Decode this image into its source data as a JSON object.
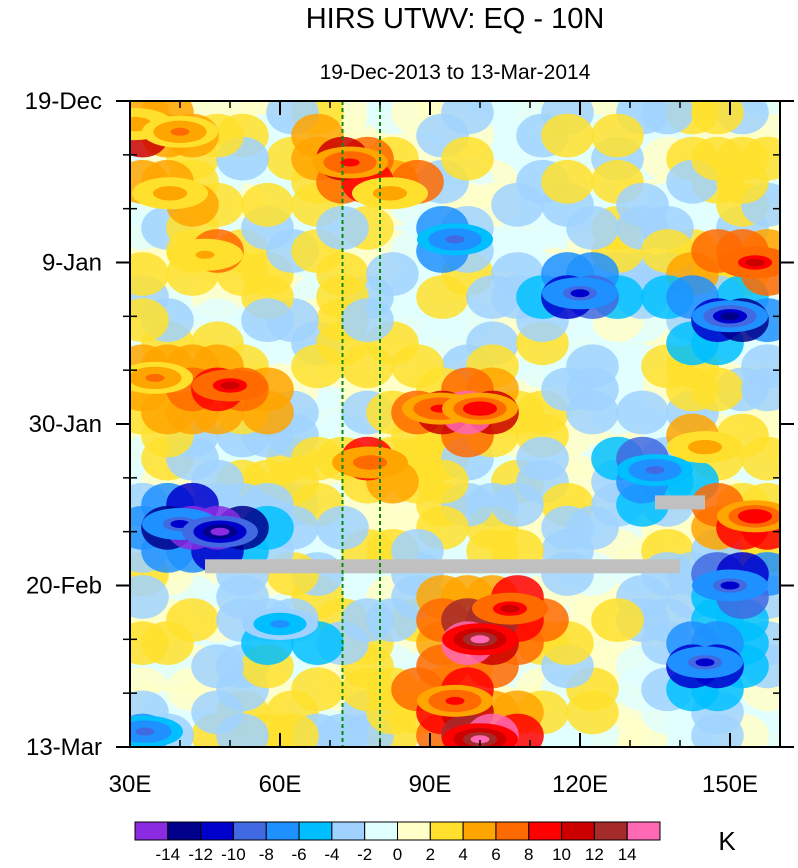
{
  "chart_data": {
    "type": "heatmap",
    "title": "HIRS UTWV: EQ - 10N",
    "subtitle": "19-Dec-2013 to 13-Mar-2014",
    "x_tick_labels": [
      "30E",
      "60E",
      "90E",
      "120E",
      "150E"
    ],
    "x_tick_values": [
      30,
      60,
      90,
      120,
      150
    ],
    "xlim": [
      30,
      160
    ],
    "y_tick_labels": [
      "19-Dec",
      "9-Jan",
      "30-Jan",
      "20-Feb",
      "13-Mar"
    ],
    "y_tick_days": [
      0,
      21,
      42,
      63,
      84
    ],
    "ylim_days": [
      0,
      84
    ],
    "colorbar": {
      "unit_label": "K",
      "levels": [
        "-14",
        "-12",
        "-10",
        "-8",
        "-6",
        "-4",
        "-2",
        "0",
        "2",
        "4",
        "6",
        "8",
        "10",
        "12",
        "14"
      ],
      "colors": [
        "#8a2be2",
        "#00008b",
        "#0000cd",
        "#4169e1",
        "#1e90ff",
        "#00bfff",
        "#a0d2ff",
        "#e0ffff",
        "#ffffc8",
        "#ffe12d",
        "#ffa500",
        "#ff6a00",
        "#ff0000",
        "#cd0000",
        "#a52a2a",
        "#ff69b4"
      ]
    },
    "reference_lines_lon": [
      72.5,
      80
    ],
    "missing_data_bars": [
      {
        "lon_start": 45,
        "lon_end": 140,
        "day": 60.5
      },
      {
        "lon_start": 135,
        "lon_end": 145,
        "day": 52.2
      }
    ],
    "anomaly_features": [
      {
        "lon": 31,
        "day": 3,
        "value": 5
      },
      {
        "lon": 40,
        "day": 4,
        "value": 6
      },
      {
        "lon": 38,
        "day": 12,
        "value": 5
      },
      {
        "lon": 45,
        "day": 20,
        "value": 4
      },
      {
        "lon": 74,
        "day": 8,
        "value": 8
      },
      {
        "lon": 82,
        "day": 12,
        "value": 5
      },
      {
        "lon": 95,
        "day": 18,
        "value": -8
      },
      {
        "lon": 120,
        "day": 25,
        "value": -10
      },
      {
        "lon": 150,
        "day": 28,
        "value": -12
      },
      {
        "lon": 155,
        "day": 21,
        "value": 10
      },
      {
        "lon": 50,
        "day": 37,
        "value": 10
      },
      {
        "lon": 35,
        "day": 36,
        "value": 6
      },
      {
        "lon": 100,
        "day": 40,
        "value": 9
      },
      {
        "lon": 92,
        "day": 40,
        "value": 8
      },
      {
        "lon": 78,
        "day": 47,
        "value": 7
      },
      {
        "lon": 145,
        "day": 45,
        "value": 5
      },
      {
        "lon": 40,
        "day": 55,
        "value": -10
      },
      {
        "lon": 48,
        "day": 56,
        "value": -14
      },
      {
        "lon": 155,
        "day": 54,
        "value": 9
      },
      {
        "lon": 135,
        "day": 48,
        "value": -8
      },
      {
        "lon": 150,
        "day": 63,
        "value": -10
      },
      {
        "lon": 100,
        "day": 70,
        "value": 14
      },
      {
        "lon": 106,
        "day": 66,
        "value": 10
      },
      {
        "lon": 100,
        "day": 83,
        "value": 14
      },
      {
        "lon": 95,
        "day": 78,
        "value": 8
      },
      {
        "lon": 145,
        "day": 73,
        "value": -10
      },
      {
        "lon": 60,
        "day": 68,
        "value": -6
      },
      {
        "lon": 33,
        "day": 82,
        "value": -8
      }
    ]
  }
}
